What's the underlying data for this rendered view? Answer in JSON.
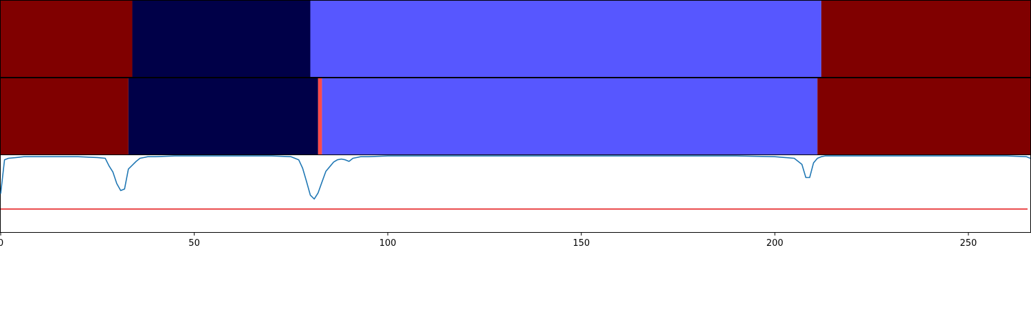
{
  "chart_data": {
    "type": "composite",
    "xlim": [
      0,
      266
    ],
    "x_ticks": [
      0,
      50,
      100,
      150,
      200,
      250
    ],
    "segment_rows": [
      {
        "segments": [
          {
            "start": 0,
            "end": 34,
            "color": "#800000"
          },
          {
            "start": 34,
            "end": 80,
            "color": "#000048"
          },
          {
            "start": 80,
            "end": 212,
            "color": "#5757ff"
          },
          {
            "start": 212,
            "end": 266,
            "color": "#800000"
          }
        ]
      },
      {
        "segments": [
          {
            "start": 0,
            "end": 33,
            "color": "#800000"
          },
          {
            "start": 33,
            "end": 82,
            "color": "#000048"
          },
          {
            "start": 82,
            "end": 83,
            "color": "#ff4a4a"
          },
          {
            "start": 83,
            "end": 211,
            "color": "#5757ff"
          },
          {
            "start": 211,
            "end": 266,
            "color": "#800000"
          }
        ]
      }
    ],
    "line_panel": {
      "ylim": [
        0,
        1.0
      ],
      "threshold": 0.3,
      "threshold_color": "#e41a1c",
      "line_color": "#1f77b4",
      "x": [
        0,
        1,
        2,
        4,
        6,
        10,
        15,
        20,
        25,
        27,
        28,
        29,
        30,
        31,
        32,
        33,
        34,
        35,
        36,
        37,
        38,
        40,
        45,
        50,
        60,
        70,
        75,
        77,
        78,
        79,
        80,
        81,
        82,
        83,
        84,
        85,
        86,
        87,
        88,
        89,
        90,
        91,
        92,
        93,
        95,
        100,
        110,
        120,
        130,
        140,
        150,
        160,
        165,
        170,
        180,
        190,
        200,
        205,
        207,
        208,
        209,
        210,
        211,
        212,
        213,
        214,
        215,
        220,
        230,
        240,
        250,
        260,
        265,
        266
      ],
      "y": [
        0.5,
        0.94,
        0.96,
        0.97,
        0.98,
        0.98,
        0.98,
        0.98,
        0.97,
        0.96,
        0.86,
        0.78,
        0.63,
        0.54,
        0.56,
        0.82,
        0.87,
        0.92,
        0.96,
        0.97,
        0.98,
        0.98,
        0.99,
        0.99,
        0.99,
        0.99,
        0.98,
        0.94,
        0.83,
        0.66,
        0.48,
        0.43,
        0.51,
        0.65,
        0.79,
        0.85,
        0.91,
        0.94,
        0.95,
        0.94,
        0.92,
        0.96,
        0.97,
        0.98,
        0.98,
        0.99,
        0.99,
        0.99,
        0.99,
        0.99,
        0.99,
        0.99,
        0.99,
        0.99,
        0.99,
        0.99,
        0.98,
        0.96,
        0.88,
        0.71,
        0.71,
        0.9,
        0.96,
        0.98,
        0.99,
        0.99,
        0.99,
        0.99,
        0.99,
        0.99,
        0.99,
        0.99,
        0.98,
        0.96
      ]
    }
  }
}
